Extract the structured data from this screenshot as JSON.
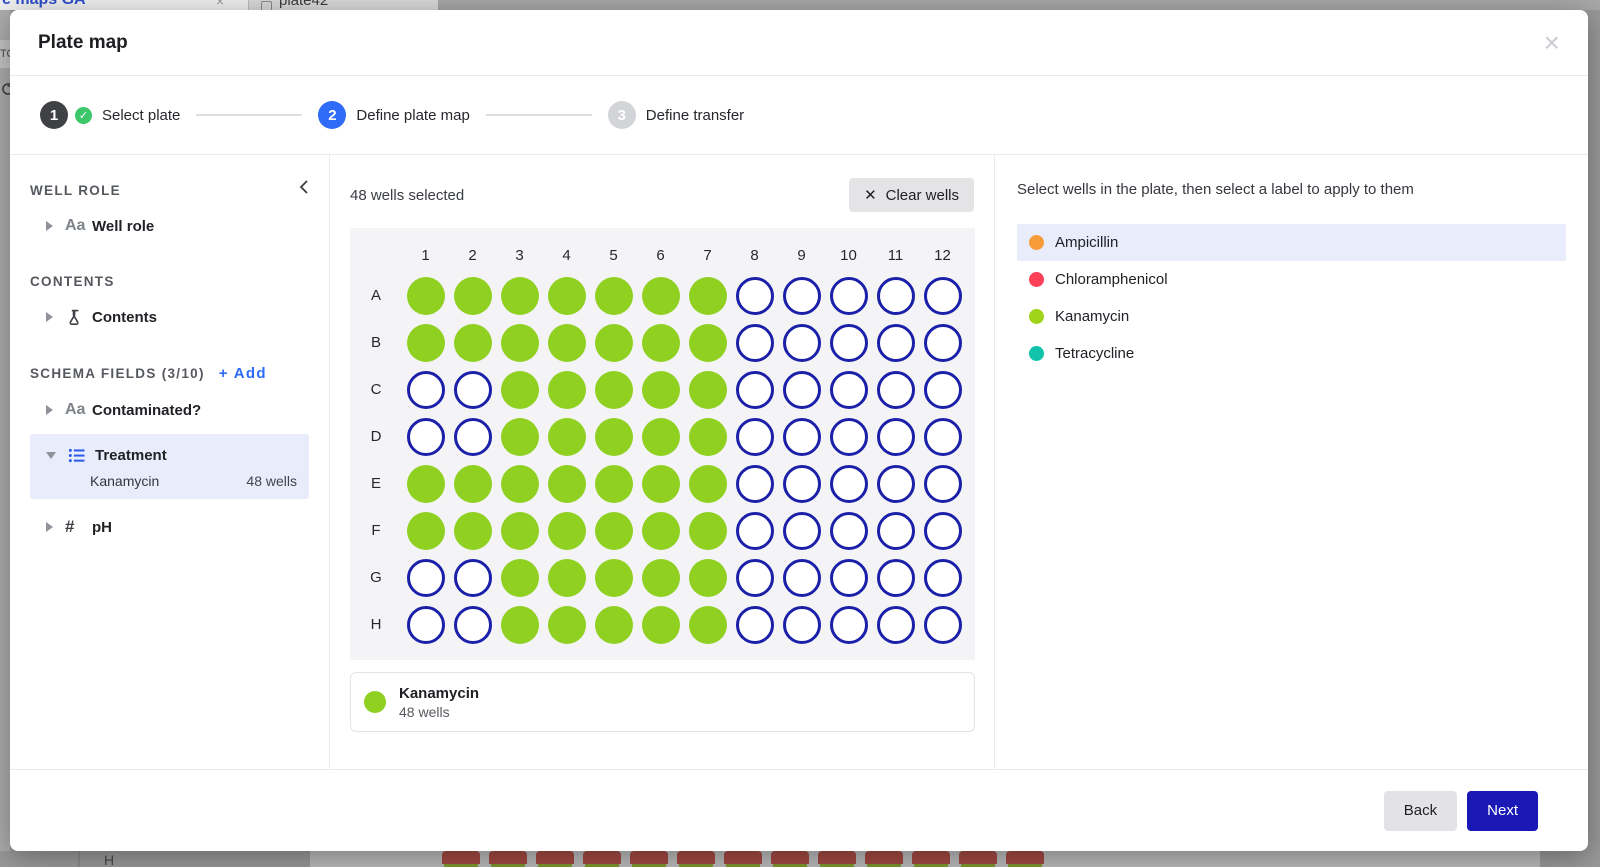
{
  "colors": {
    "well_filled": "#8fd021",
    "well_empty_border": "#1b20a8",
    "stepper_active": "#2e6bf6",
    "step_completed": "#3f4144",
    "check_green": "#3ec76a",
    "selection_highlight": "#e8ecfb",
    "add_link": "#2e6bf6",
    "next_button": "#1b19b5"
  },
  "background_page": {
    "tab1_label": "e maps GA",
    "tab1_close": "×",
    "tab2_label": "plate42",
    "left_clipped_text": "TO",
    "bottom_row_label": "H",
    "bottom_square_count": 13
  },
  "modal": {
    "title": "Plate map",
    "close_icon": "×"
  },
  "stepper": {
    "check_glyph": "✓",
    "steps": [
      {
        "number": "1",
        "label": "Select plate",
        "status": "completed"
      },
      {
        "number": "2",
        "label": "Define plate map",
        "status": "active"
      },
      {
        "number": "3",
        "label": "Define transfer",
        "status": "upcoming"
      }
    ]
  },
  "sidebar": {
    "icons": {
      "text_field_glyph": "Aa",
      "number_glyph": "#"
    },
    "well_role_section": {
      "title": "WELL ROLE",
      "item_label": "Well role"
    },
    "contents_section": {
      "title": "CONTENTS",
      "item_label": "Contents"
    },
    "schema_section": {
      "title": "SCHEMA FIELDS (3/10)",
      "add_label": "+ Add",
      "contaminated_label": "Contaminated?",
      "treatment": {
        "label": "Treatment",
        "value": "Kanamycin",
        "count": "48 wells"
      },
      "ph_label": "pH"
    }
  },
  "plate_editor": {
    "selected_count": "48 wells selected",
    "clear_button": "Clear wells",
    "clear_icon": "✕",
    "legend": {
      "name": "Kanamycin",
      "count": "48 wells"
    }
  },
  "plate": {
    "rows": [
      "A",
      "B",
      "C",
      "D",
      "E",
      "F",
      "G",
      "H"
    ],
    "columns": [
      "1",
      "2",
      "3",
      "4",
      "5",
      "6",
      "7",
      "8",
      "9",
      "10",
      "11",
      "12"
    ],
    "filled_meaning": "Kanamycin",
    "filled_wells_by_row": {
      "A": [
        1,
        2,
        3,
        4,
        5,
        6,
        7
      ],
      "B": [
        1,
        2,
        3,
        4,
        5,
        6,
        7
      ],
      "C": [
        3,
        4,
        5,
        6,
        7
      ],
      "D": [
        3,
        4,
        5,
        6,
        7
      ],
      "E": [
        1,
        2,
        3,
        4,
        5,
        6,
        7
      ],
      "F": [
        1,
        2,
        3,
        4,
        5,
        6,
        7
      ],
      "G": [
        3,
        4,
        5,
        6,
        7
      ],
      "H": [
        3,
        4,
        5,
        6,
        7
      ]
    }
  },
  "labels_panel": {
    "instruction": "Select wells in the plate, then select a label to apply to them",
    "options": [
      {
        "name": "Ampicillin",
        "color": "#f89c3a",
        "highlighted": true
      },
      {
        "name": "Chloramphenicol",
        "color": "#fb4057",
        "highlighted": false
      },
      {
        "name": "Kanamycin",
        "color": "#9fd41b",
        "highlighted": false
      },
      {
        "name": "Tetracycline",
        "color": "#12c3ac",
        "highlighted": false
      }
    ]
  },
  "footer": {
    "back_label": "Back",
    "next_label": "Next"
  }
}
